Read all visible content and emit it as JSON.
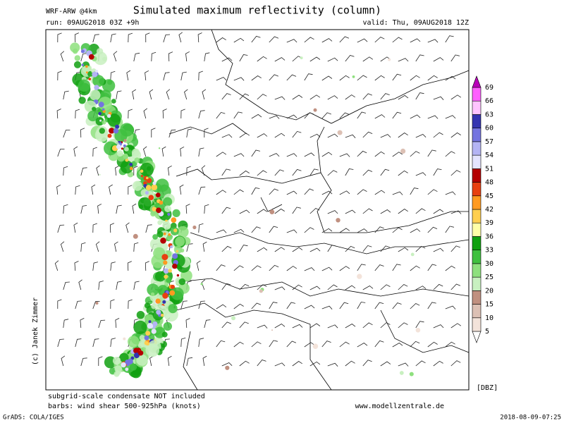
{
  "header": {
    "model": "WRF-ARW @4km",
    "title": "Simulated maximum reflectivity (column)",
    "run": "run: 09AUG2018 03Z +9h",
    "valid": "valid: Thu, 09AUG2018 12Z"
  },
  "credit": "(c) Janek Zimmer",
  "colorbar": {
    "unit": "[DBZ]",
    "levels": [
      5,
      10,
      15,
      20,
      25,
      30,
      33,
      36,
      39,
      42,
      45,
      48,
      51,
      54,
      57,
      60,
      63,
      66,
      69
    ],
    "colors": [
      "#ffffff",
      "#f3e3da",
      "#dcc0b4",
      "#c09080",
      "#c8f0c0",
      "#8ee07e",
      "#40c040",
      "#10a010",
      "#ffffa8",
      "#ffcf50",
      "#ff9a20",
      "#e84010",
      "#b40000",
      "#e4e4ff",
      "#b4b4f4",
      "#7474e0",
      "#3434b0",
      "#ffc4ff",
      "#ff60ff",
      "#b800b8"
    ]
  },
  "notes": [
    "subgrid-scale condensate NOT included",
    "barbs: wind shear 500-925hPa (knots)"
  ],
  "website": "www.modellzentrale.de",
  "footer": {
    "left": "GrADS: COLA/IGES",
    "right": "2018-08-09-07:25"
  }
}
